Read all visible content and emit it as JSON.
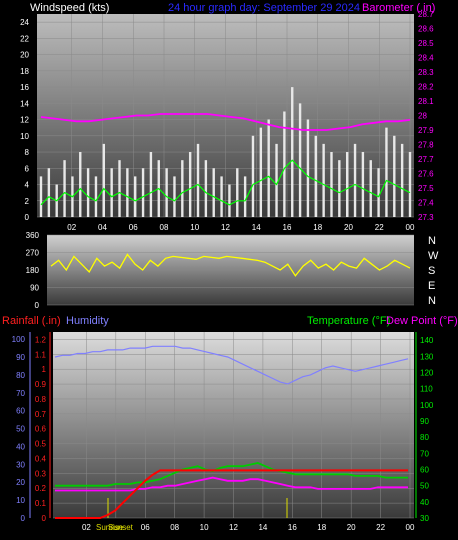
{
  "header": {
    "left": "Windspeed (kts)",
    "center": "24 hour graph day:  September 29 2024",
    "right": "Barometer (.in)"
  },
  "colors": {
    "wind": "#e8e8e8",
    "gust_avg": "#00ff00",
    "barometer": "#ff00ff",
    "direction": "#ffff00",
    "rain": "#ff0000",
    "humidity": "#8080ff",
    "temperature": "#00cc00",
    "dewpoint": "#ff00ff"
  },
  "chart_data": [
    {
      "type": "bar",
      "name": "windspeed",
      "x_ticks": [
        "02",
        "04",
        "06",
        "08",
        "10",
        "12",
        "14",
        "16",
        "18",
        "20",
        "22",
        "00"
      ],
      "y_ticks": [
        "0",
        "2",
        "4",
        "6",
        "8",
        "10",
        "12",
        "14",
        "16",
        "18",
        "20",
        "22",
        "24"
      ],
      "ylim": [
        0,
        25
      ],
      "y2_ticks": [
        "27.3",
        "27.4",
        "27.5",
        "27.6",
        "27.7",
        "27.8",
        "27.9",
        "28",
        "28.1",
        "28.2",
        "28.3",
        "28.4",
        "28.5",
        "28.6",
        "28.7"
      ],
      "y2lim": [
        27.3,
        28.7
      ],
      "wind_peaks_kts": [
        5,
        6,
        4,
        7,
        5,
        8,
        6,
        5,
        9,
        6,
        7,
        6,
        5,
        6,
        8,
        7,
        6,
        5,
        7,
        8,
        9,
        7,
        6,
        5,
        4,
        6,
        5,
        10,
        11,
        12,
        9,
        13,
        16,
        14,
        12,
        10,
        9,
        8,
        7,
        8,
        9,
        8,
        7,
        6,
        11,
        10,
        9,
        8
      ],
      "avg_wind_kts": [
        1.5,
        2.5,
        2.0,
        3.0,
        2.5,
        3.5,
        2.5,
        2.0,
        3.5,
        2.5,
        3.0,
        2.5,
        2.0,
        2.5,
        3.0,
        3.5,
        2.5,
        2.0,
        3.0,
        3.5,
        4.0,
        3.0,
        2.5,
        2.0,
        1.5,
        2.0,
        2.0,
        4.0,
        4.5,
        5.0,
        4.0,
        6.0,
        7.0,
        6.0,
        5.0,
        4.5,
        4.0,
        3.5,
        3.0,
        3.5,
        4.0,
        3.5,
        3.0,
        2.5,
        4.5,
        4.0,
        3.5,
        3.0
      ],
      "barometer_in": [
        27.99,
        27.98,
        27.97,
        27.96,
        27.96,
        27.97,
        27.98,
        27.99,
        28.0,
        28.0,
        28.01,
        28.01,
        28.01,
        28.01,
        28.01,
        28.0,
        27.99,
        27.98,
        27.96,
        27.94,
        27.92,
        27.91,
        27.9,
        27.9,
        27.9,
        27.91,
        27.92,
        27.94,
        27.95,
        27.96,
        27.96,
        27.97
      ]
    },
    {
      "type": "scatter",
      "name": "wind_direction",
      "y_ticks": [
        "0",
        "90",
        "180",
        "270",
        "360"
      ],
      "ylim": [
        0,
        360
      ],
      "compass": [
        "N",
        "W",
        "S",
        "E",
        "N"
      ],
      "direction_deg": [
        200,
        230,
        180,
        250,
        210,
        170,
        240,
        200,
        220,
        190,
        260,
        210,
        180,
        230,
        200,
        240,
        250,
        245,
        240,
        235,
        250,
        245,
        240,
        250,
        245,
        240,
        235,
        230,
        220,
        200,
        180,
        210,
        150,
        200,
        230,
        190,
        210,
        180,
        220,
        200,
        190,
        240,
        210,
        180,
        200,
        230,
        210,
        190
      ]
    },
    {
      "type": "line",
      "name": "rain_hum_temp",
      "left_label": "Rainfall (.in)",
      "hum_label": "Humidity",
      "right_label": "Temperature (°F)",
      "dew_label": "Dew Point (°F)",
      "rain_ticks": [
        "0",
        "0.1",
        "0.2",
        "0.3",
        "0.4",
        "0.5",
        "0.6",
        "0.7",
        "0.8",
        "0.9",
        "1",
        "1.1",
        "1.2"
      ],
      "rain_lim": [
        0,
        1.25
      ],
      "hum_ticks": [
        "0",
        "10",
        "20",
        "30",
        "40",
        "50",
        "60",
        "70",
        "80",
        "90",
        "100"
      ],
      "hum_lim": [
        0,
        104
      ],
      "temp_ticks": [
        "30",
        "40",
        "50",
        "60",
        "70",
        "80",
        "90",
        "100",
        "110",
        "120",
        "130",
        "140"
      ],
      "temp_lim": [
        30,
        145
      ],
      "sunrise_label": "Sunrise",
      "sunset_label": "Sunset",
      "rain_in": [
        0,
        0,
        0,
        0,
        0,
        0,
        0,
        0.02,
        0.05,
        0.1,
        0.15,
        0.2,
        0.25,
        0.29,
        0.32,
        0.32,
        0.32,
        0.32,
        0.32,
        0.32,
        0.32,
        0.32,
        0.32,
        0.32,
        0.32,
        0.32,
        0.32,
        0.32,
        0.32,
        0.32,
        0.32,
        0.32,
        0.32,
        0.32,
        0.32,
        0.32,
        0.32,
        0.32,
        0.32,
        0.32,
        0.32,
        0.32,
        0.32,
        0.32,
        0.32,
        0.32,
        0.32,
        0.32
      ],
      "humidity_pct": [
        90,
        91,
        91,
        92,
        92,
        93,
        93,
        94,
        94,
        94,
        95,
        95,
        95,
        96,
        96,
        96,
        96,
        95,
        95,
        94,
        93,
        92,
        91,
        90,
        88,
        86,
        84,
        82,
        80,
        78,
        76,
        75,
        77,
        79,
        80,
        82,
        84,
        85,
        84,
        83,
        82,
        83,
        84,
        85,
        86,
        87,
        88,
        89
      ],
      "temperature_f": [
        50,
        50,
        50,
        50,
        50,
        50,
        50,
        50,
        51,
        51,
        51,
        52,
        52,
        53,
        54,
        56,
        58,
        60,
        61,
        62,
        60,
        59,
        61,
        62,
        62,
        62,
        63,
        64,
        62,
        60,
        59,
        58,
        57,
        57,
        57,
        57,
        57,
        57,
        57,
        57,
        56,
        56,
        56,
        56,
        55,
        55,
        55,
        55
      ],
      "dewpoint_f": [
        47,
        47,
        47,
        47,
        47,
        47,
        47,
        47,
        47,
        47,
        47,
        48,
        48,
        49,
        49,
        50,
        50,
        51,
        52,
        53,
        54,
        55,
        54,
        53,
        53,
        53,
        54,
        54,
        53,
        52,
        51,
        50,
        49,
        49,
        49,
        48,
        48,
        48,
        48,
        48,
        48,
        48,
        48,
        49,
        49,
        49,
        49,
        49
      ]
    }
  ]
}
